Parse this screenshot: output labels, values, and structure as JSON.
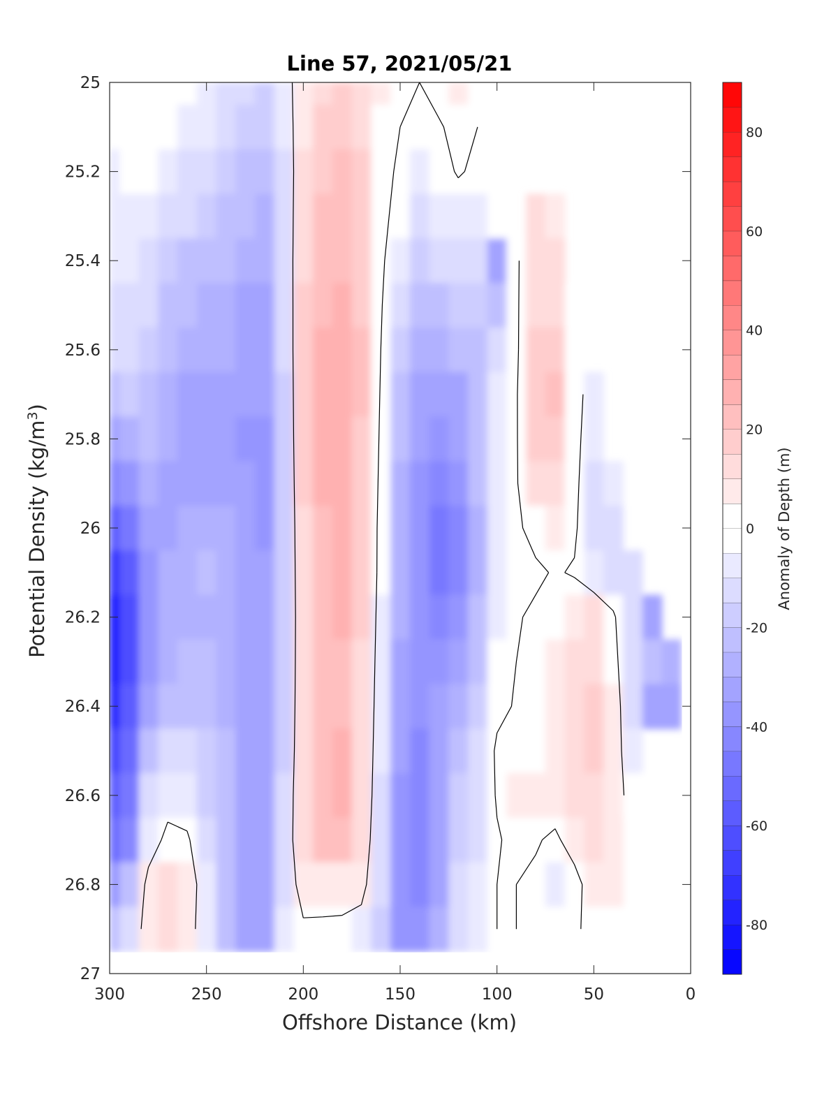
{
  "chart_data": {
    "type": "heatmap",
    "subtype": "filled contour section",
    "title": "Line 57, 2021/05/21",
    "xlabel": "Offshore Distance (km)",
    "ylabel": "Potential Density (kg/m",
    "ylabel_sup": "3",
    "ylabel_close": ")",
    "colorbar_label": "Anomaly of Depth (m)",
    "xlim": [
      300,
      0
    ],
    "x_reversed": true,
    "ylim": [
      25,
      27
    ],
    "y_reversed": true,
    "xticks": [
      300,
      250,
      200,
      150,
      100,
      50,
      0
    ],
    "yticks": [
      25,
      25.2,
      25.4,
      25.6,
      25.8,
      26,
      26.2,
      26.4,
      26.6,
      26.8,
      27
    ],
    "ytick_labels": [
      "25",
      "25.2",
      "25.4",
      "25.6",
      "25.8",
      "26",
      "26.2",
      "26.4",
      "26.6",
      "26.8",
      "27"
    ],
    "colorbar_range": [
      -90,
      90
    ],
    "colorbar_ticks": [
      -80,
      -60,
      -40,
      -20,
      0,
      20,
      40,
      60,
      80
    ],
    "colorbar_step": 5,
    "colormap": {
      "negative": "#0000ff",
      "zero": "#ffffff",
      "positive": "#ff0000"
    },
    "zero_contour_color": "#000000",
    "grid": false,
    "data_extent": {
      "x": [
        300,
        5
      ],
      "y": [
        25,
        26.9
      ]
    },
    "x": [
      300,
      290,
      280,
      270,
      260,
      250,
      240,
      230,
      220,
      210,
      200,
      190,
      180,
      170,
      160,
      150,
      140,
      130,
      120,
      110,
      100,
      90,
      80,
      70,
      60,
      50,
      40,
      30,
      20,
      10
    ],
    "y": [
      25.0,
      25.1,
      25.2,
      25.3,
      25.4,
      25.5,
      25.6,
      25.7,
      25.8,
      25.9,
      26.0,
      26.1,
      26.2,
      26.3,
      26.4,
      26.5,
      26.6,
      26.7,
      26.8,
      26.9
    ],
    "z_units": "m",
    "z_description": "rows follow y (density), columns follow x (distance); null = no data",
    "z": [
      [
        -3,
        -2,
        -1,
        -2,
        -4,
        -7,
        -10,
        -12,
        -15,
        -6,
        8,
        14,
        15,
        12,
        5,
        2,
        0,
        4,
        8,
        0,
        null,
        null,
        null,
        null,
        null,
        null,
        null,
        null,
        null,
        null
      ],
      [
        -4,
        -3,
        -2,
        -3,
        -6,
        -9,
        -13,
        -16,
        -19,
        -8,
        9,
        16,
        17,
        13,
        4,
        0,
        -2,
        -1,
        3,
        0,
        null,
        null,
        null,
        null,
        null,
        null,
        null,
        null,
        null,
        null
      ],
      [
        -5,
        -4,
        -3,
        -6,
        -10,
        -13,
        -16,
        -20,
        -22,
        -10,
        10,
        18,
        20,
        15,
        4,
        -2,
        -6,
        -4,
        1,
        -2,
        null,
        null,
        null,
        null,
        null,
        null,
        null,
        null,
        null,
        null
      ],
      [
        -6,
        -5,
        -6,
        -10,
        -14,
        -17,
        -20,
        -24,
        -25,
        -11,
        12,
        20,
        22,
        16,
        3,
        -4,
        -10,
        -8,
        -6,
        -5,
        -3,
        null,
        10,
        8,
        null,
        null,
        null,
        null,
        null,
        null
      ],
      [
        -8,
        -7,
        -10,
        -16,
        -20,
        -22,
        -24,
        -28,
        -28,
        -12,
        14,
        22,
        24,
        18,
        2,
        -8,
        -16,
        -14,
        -12,
        -10,
        -30,
        -2,
        12,
        10,
        null,
        null,
        null,
        null,
        null,
        null
      ],
      [
        -10,
        -10,
        -14,
        -20,
        -24,
        -25,
        -26,
        -30,
        -30,
        -13,
        15,
        24,
        26,
        19,
        1,
        -12,
        -22,
        -20,
        -18,
        -15,
        -20,
        -2,
        14,
        14,
        2,
        null,
        null,
        null,
        null,
        null
      ],
      [
        -14,
        -13,
        -18,
        -24,
        -28,
        -28,
        -28,
        -32,
        -32,
        -14,
        16,
        25,
        28,
        20,
        0,
        -16,
        -28,
        -28,
        -24,
        -20,
        -12,
        -2,
        16,
        18,
        3,
        null,
        null,
        null,
        null,
        null
      ],
      [
        -20,
        -18,
        -22,
        -26,
        -30,
        -30,
        -30,
        -34,
        -34,
        -15,
        16,
        26,
        29,
        20,
        -1,
        -20,
        -32,
        -34,
        -30,
        -22,
        -8,
        -1,
        18,
        20,
        4,
        -5,
        null,
        null,
        null,
        null
      ],
      [
        -30,
        -26,
        -24,
        -28,
        -32,
        -33,
        -32,
        -36,
        -36,
        -16,
        16,
        26,
        29,
        19,
        -2,
        -24,
        -34,
        -38,
        -34,
        -22,
        -6,
        -1,
        16,
        18,
        4,
        -8,
        null,
        null,
        null,
        null
      ],
      [
        -40,
        -36,
        -28,
        -30,
        -32,
        -30,
        -30,
        -34,
        -38,
        -17,
        15,
        25,
        28,
        18,
        -3,
        -26,
        -36,
        -42,
        -38,
        -24,
        -6,
        -1,
        12,
        14,
        3,
        -10,
        -6,
        null,
        null,
        null
      ],
      [
        -55,
        -46,
        -32,
        -30,
        -28,
        -26,
        -28,
        -32,
        -36,
        -18,
        14,
        24,
        27,
        17,
        -4,
        -28,
        -38,
        -46,
        -42,
        -26,
        -8,
        -2,
        4,
        6,
        2,
        -12,
        -12,
        null,
        null,
        null
      ],
      [
        -70,
        -58,
        -36,
        -28,
        -26,
        -24,
        -26,
        -30,
        -34,
        -18,
        13,
        23,
        26,
        16,
        -4,
        -28,
        -38,
        -46,
        -42,
        -26,
        -8,
        -2,
        -2,
        1,
        -1,
        -8,
        -12,
        -10,
        null,
        null
      ],
      [
        -80,
        -64,
        -38,
        -28,
        -26,
        -26,
        -28,
        -30,
        -34,
        -18,
        12,
        22,
        25,
        15,
        -5,
        -28,
        -36,
        -42,
        -38,
        -24,
        -6,
        -1,
        2,
        4,
        8,
        10,
        2,
        -14,
        -30,
        null
      ],
      [
        -80,
        -62,
        -36,
        -26,
        -24,
        -24,
        -26,
        -30,
        -34,
        -17,
        12,
        22,
        24,
        14,
        -6,
        -30,
        -36,
        -38,
        -32,
        -20,
        -4,
        0,
        3,
        5,
        10,
        14,
        4,
        -12,
        -24,
        -28
      ],
      [
        -76,
        -58,
        -30,
        -22,
        -20,
        -22,
        -26,
        -30,
        -34,
        -16,
        12,
        22,
        24,
        13,
        -7,
        -32,
        -38,
        -34,
        -26,
        -16,
        -3,
        1,
        4,
        6,
        12,
        18,
        6,
        -10,
        -30,
        -30
      ],
      [
        -68,
        -52,
        -22,
        -14,
        -14,
        -18,
        -24,
        -30,
        -34,
        -15,
        13,
        24,
        26,
        12,
        -8,
        -34,
        -40,
        -30,
        -20,
        -12,
        2,
        4,
        4,
        6,
        12,
        16,
        6,
        -8,
        null,
        null
      ],
      [
        -58,
        -46,
        -14,
        -6,
        -8,
        -16,
        -24,
        -30,
        -32,
        -12,
        13,
        24,
        26,
        12,
        -10,
        -36,
        -42,
        -30,
        -18,
        -10,
        1,
        8,
        5,
        6,
        10,
        14,
        5,
        -4,
        null,
        null
      ],
      [
        -50,
        -40,
        -8,
        4,
        2,
        -12,
        -24,
        -32,
        -34,
        -10,
        12,
        20,
        22,
        10,
        -12,
        -38,
        -40,
        -30,
        -16,
        -10,
        -1,
        3,
        1,
        -2,
        5,
        10,
        6,
        null,
        null,
        null
      ],
      [
        -38,
        -22,
        5,
        12,
        8,
        -8,
        -24,
        -32,
        -34,
        -10,
        6,
        8,
        9,
        5,
        -14,
        -38,
        -40,
        -30,
        -14,
        -8,
        0,
        0,
        -2,
        -6,
        -4,
        6,
        5,
        null,
        null,
        null
      ],
      [
        -20,
        -10,
        6,
        14,
        6,
        -8,
        -22,
        -30,
        -30,
        -8,
        -2,
        -3,
        -4,
        -6,
        -16,
        -36,
        -38,
        -26,
        -12,
        -6,
        0,
        0,
        -2,
        -4,
        -2,
        4,
        3,
        null,
        null,
        null
      ]
    ]
  }
}
